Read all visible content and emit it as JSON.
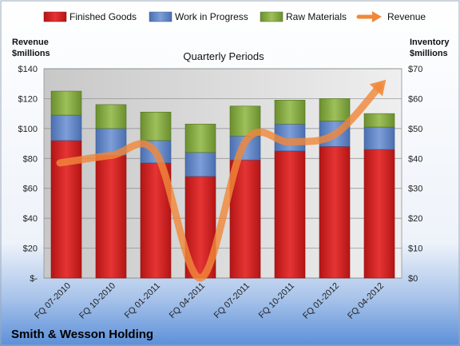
{
  "chart_data": {
    "type": "bar",
    "stacked": true,
    "title": "Smith & Wesson Holding",
    "subtitle": "Quarterly Periods",
    "ylabel_left": [
      "Revenue",
      "$millions"
    ],
    "ylabel_right": [
      "Inventory",
      "$millions"
    ],
    "y_left_ticks": [
      "$-",
      "$20",
      "$40",
      "$60",
      "$80",
      "$100",
      "$120",
      "$140"
    ],
    "y_right_ticks": [
      "$0",
      "$10",
      "$20",
      "$30",
      "$40",
      "$50",
      "$60",
      "$70"
    ],
    "y_left_range": [
      0,
      140
    ],
    "y_right_range": [
      0,
      70
    ],
    "grid": true,
    "legend_position": "top",
    "categories": [
      "FQ 07-2010",
      "FQ 10-2010",
      "FQ 01-2011",
      "FQ 04-2011",
      "FQ 07-2011",
      "FQ 10-2011",
      "FQ 01-2012",
      "FQ 04-2012"
    ],
    "series": [
      {
        "name": "Finished Goods",
        "axis": "right",
        "color": "#e02a2a",
        "values": [
          46,
          41,
          38.5,
          34,
          39.5,
          42.5,
          44,
          43
        ]
      },
      {
        "name": "Work in Progress",
        "axis": "right",
        "color": "#6a8fd0",
        "values": [
          8.5,
          9,
          7.5,
          8,
          8,
          9,
          8.5,
          7.5
        ]
      },
      {
        "name": "Raw Materials",
        "axis": "right",
        "color": "#8db04a",
        "values": [
          8,
          8,
          9.5,
          9.5,
          10,
          8,
          7.5,
          4.5
        ]
      },
      {
        "name": "Revenue",
        "axis": "left",
        "type": "line",
        "color": "#f0883a",
        "values": [
          77,
          82,
          84,
          0,
          91,
          91,
          96,
          128
        ]
      }
    ]
  }
}
